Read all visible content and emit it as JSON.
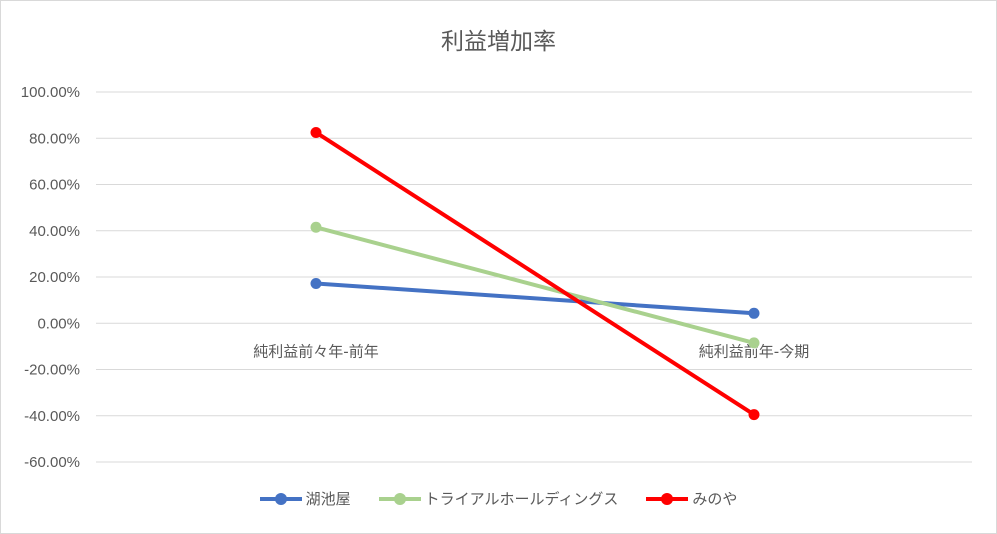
{
  "chart_data": {
    "type": "line",
    "title": "利益増加率",
    "categories": [
      "純利益前々年-前年",
      "純利益前年-今期"
    ],
    "ylim": [
      -60,
      100
    ],
    "yticks": [
      "100.00%",
      "80.00%",
      "60.00%",
      "40.00%",
      "20.00%",
      "0.00%",
      "-20.00%",
      "-40.00%",
      "-60.00%"
    ],
    "grid": true,
    "legend_position": "bottom",
    "series": [
      {
        "name": "湖池屋",
        "color": "#4472c4",
        "values": [
          17.2,
          4.3
        ]
      },
      {
        "name": "トライアルホールディングス",
        "color": "#a9d18e",
        "values": [
          41.5,
          -8.5
        ]
      },
      {
        "name": "みのや",
        "color": "#ff0000",
        "values": [
          82.5,
          -39.5
        ]
      }
    ]
  }
}
